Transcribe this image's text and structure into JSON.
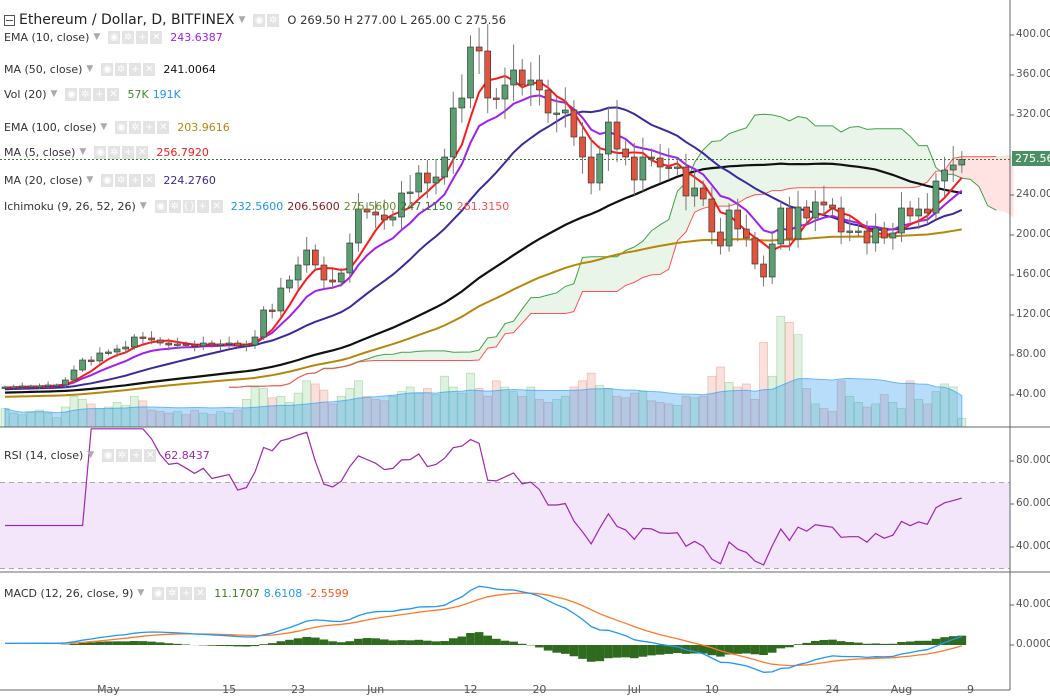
{
  "header": {
    "symbol": "Ethereum / Dollar, D, BITFINEX",
    "ohlc": "O 269.50 H 277.00 L 265.00 C 275.56"
  },
  "indicators": [
    {
      "name": "EMA (10, close)",
      "values": [
        "243.6387"
      ],
      "colors": [
        "#a020f0"
      ]
    },
    {
      "name": "MA (50, close)",
      "values": [
        "241.0064"
      ],
      "colors": [
        "#111111"
      ]
    },
    {
      "name": "Vol (20)",
      "values": [
        "57K",
        "191K"
      ],
      "colors": [
        "#3d8b2f",
        "#2196f3"
      ]
    },
    {
      "name": "EMA (100, close)",
      "values": [
        "203.9616"
      ],
      "colors": [
        "#b8860b"
      ]
    },
    {
      "name": "MA (5, close)",
      "values": [
        "256.7920"
      ],
      "colors": [
        "#ff1a1a"
      ]
    },
    {
      "name": "MA (20, close)",
      "values": [
        "224.2760"
      ],
      "colors": [
        "#3b2a9e"
      ]
    },
    {
      "name": "Ichimoku (9, 26, 52, 26)",
      "values": [
        "232.5600",
        "206.5600",
        "275.5600",
        "247.1150",
        "261.3150"
      ],
      "colors": [
        "#2196f3",
        "#8b1a1a",
        "#6b8e23",
        "#2e7d32",
        "#ff4d4d"
      ]
    },
    {
      "name": "RSI (14, close)",
      "values": [
        "62.8437"
      ],
      "colors": [
        "#9c27b0"
      ]
    },
    {
      "name": "MACD (12, 26, close, 9)",
      "values": [
        "11.1707",
        "8.6108",
        "-2.5599"
      ],
      "colors": [
        "#3d7a1f",
        "#2196f3",
        "#ff5722"
      ]
    }
  ],
  "icons": [
    "eye-icon",
    "gear-icon",
    "plus-icon",
    "close-icon"
  ],
  "current_price_label": "275.56",
  "colors": {
    "up": "#5b9e72",
    "down": "#e0533c",
    "grid_current": "#2e7d32"
  },
  "chart_data": {
    "type": "candlestick",
    "title": "Ethereum / Dollar, D, BITFINEX",
    "x_tick_labels": [
      {
        "label": "May",
        "day_index": 12
      },
      {
        "label": "15",
        "day_index": 26
      },
      {
        "label": "23",
        "day_index": 34
      },
      {
        "label": "Jun",
        "day_index": 43
      },
      {
        "label": "12",
        "day_index": 54
      },
      {
        "label": "20",
        "day_index": 62
      },
      {
        "label": "Jul",
        "day_index": 73
      },
      {
        "label": "10",
        "day_index": 82
      },
      {
        "label": "24",
        "day_index": 96
      },
      {
        "label": "Aug",
        "day_index": 104
      },
      {
        "label": "9",
        "day_index": 112
      }
    ],
    "price_axis": {
      "ticks": [
        "400.00",
        "360.00",
        "320.00",
        "240.00",
        "200.00",
        "160.00",
        "120.00",
        "80.00",
        "40.00"
      ],
      "ylim": [
        8,
        435
      ]
    },
    "rsi_axis": {
      "ticks": [
        "80.0000",
        "60.0000",
        "40.0000"
      ],
      "band": [
        30,
        70
      ]
    },
    "macd_axis": {
      "ticks": [
        "40.0000",
        "0.0000"
      ]
    },
    "close": [
      48,
      48,
      49,
      49,
      49,
      50,
      50,
      55,
      65,
      75,
      74,
      82,
      83,
      86,
      88,
      98,
      97,
      95,
      92,
      90,
      91,
      90,
      89,
      92,
      90,
      91,
      92,
      89,
      90,
      98,
      125,
      124,
      147,
      155,
      170,
      185,
      170,
      155,
      153,
      162,
      192,
      226,
      223,
      220,
      215,
      218,
      242,
      243,
      262,
      252,
      258,
      278,
      327,
      337,
      388,
      384,
      337,
      336,
      350,
      365,
      350,
      355,
      345,
      322,
      322,
      325,
      298,
      278,
      252,
      281,
      313,
      286,
      278,
      255,
      278,
      277,
      268,
      267,
      268,
      239,
      247,
      236,
      203,
      189,
      225,
      206,
      197,
      171,
      158,
      191,
      227,
      196,
      228,
      217,
      233,
      230,
      227,
      203,
      204,
      204,
      192,
      207,
      197,
      202,
      227,
      219,
      226,
      222,
      254,
      265,
      270,
      275.56
    ],
    "volume_k": [
      120,
      90,
      80,
      100,
      110,
      90,
      60,
      130,
      200,
      180,
      150,
      120,
      130,
      160,
      140,
      200,
      170,
      110,
      100,
      90,
      100,
      80,
      110,
      90,
      80,
      100,
      90,
      110,
      180,
      260,
      250,
      190,
      200,
      160,
      220,
      300,
      280,
      240,
      150,
      200,
      250,
      300,
      200,
      180,
      170,
      200,
      230,
      260,
      220,
      250,
      210,
      330,
      260,
      220,
      350,
      250,
      200,
      300,
      260,
      230,
      200,
      260,
      180,
      160,
      180,
      200,
      260,
      300,
      350,
      270,
      250,
      200,
      190,
      220,
      230,
      170,
      160,
      150,
      140,
      200,
      190,
      200,
      330,
      390,
      290,
      260,
      280,
      180,
      550,
      330,
      720,
      680,
      600,
      250,
      150,
      120,
      100,
      300,
      200,
      160,
      130,
      150,
      210,
      160,
      120,
      300,
      180,
      150,
      230,
      280,
      260,
      57
    ]
  }
}
